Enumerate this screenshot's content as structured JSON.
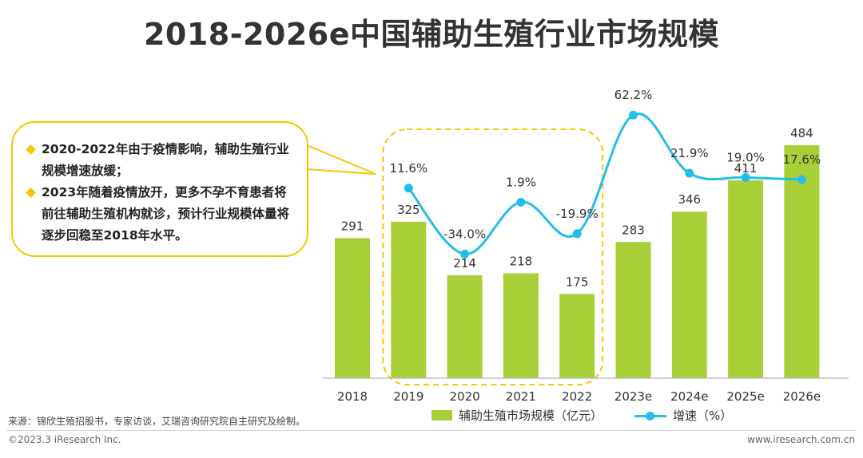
{
  "title": "2018-2026e中国辅助生殖行业市场规模",
  "callout": {
    "bullets": [
      "2020-2022年由于疫情影响，辅助生殖行业规模增速放缓；",
      "2023年随着疫情放开，更多不孕不育患者将前往辅助生殖机构就诊，预计行业规模体量将逐步回稳至2018年水平。"
    ]
  },
  "colors": {
    "bar": "#A9CF38",
    "line": "#22BEE8",
    "highlight": "#F5C800",
    "axis": "#BFBFBF"
  },
  "chart_data": {
    "type": "bar",
    "title": "2018-2026e中国辅助生殖行业市场规模",
    "categories": [
      "2018",
      "2019",
      "2020",
      "2021",
      "2022",
      "2023e",
      "2024e",
      "2025e",
      "2026e"
    ],
    "series": [
      {
        "name": "辅助生殖市场规模（亿元）",
        "type": "bar",
        "axis": "left",
        "values": [
          291,
          325,
          214,
          218,
          175,
          283,
          346,
          411,
          484
        ],
        "labels": [
          "291",
          "325",
          "214",
          "218",
          "175",
          "283",
          "346",
          "411",
          "484"
        ]
      },
      {
        "name": "增速（%）",
        "type": "line",
        "axis": "right",
        "values": [
          null,
          11.6,
          -34.0,
          1.9,
          -19.9,
          62.2,
          21.9,
          19.0,
          17.6
        ],
        "labels": [
          "",
          "11.6%",
          "-34.0%",
          "1.9%",
          "-19.9%",
          "62.2%",
          "21.9%",
          "19.0%",
          "17.6%"
        ]
      }
    ],
    "ylim": [
      0,
      600
    ],
    "y2lim": [
      -120,
      80
    ],
    "highlight_range": [
      "2019",
      "2022"
    ],
    "legend_position": "bottom",
    "grid": false
  },
  "legend": {
    "bar_label": "辅助生殖市场规模（亿元）",
    "line_label": "增速（%）"
  },
  "source": "来源：锦欣生殖招股书，专家访谈，艾瑞咨询研究院自主研究及绘制。",
  "copyright": "©2023.3 iResearch Inc.",
  "website": "www.iresearch.com.cn"
}
